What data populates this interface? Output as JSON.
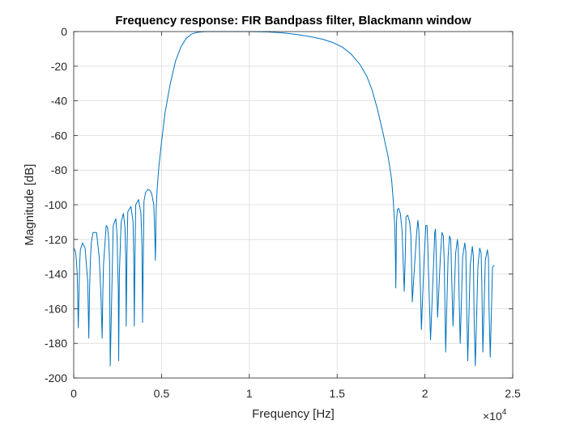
{
  "chart_data": {
    "type": "line",
    "title": "Frequency response: FIR Bandpass filter, Blackmann window",
    "xlabel": "Frequency [Hz]",
    "ylabel": "Magnitude [dB]",
    "xlim": [
      0,
      25000
    ],
    "ylim": [
      -200,
      0
    ],
    "x_ticks": [
      0,
      5000,
      10000,
      15000,
      20000,
      25000
    ],
    "x_tick_labels": [
      "0",
      "0.5",
      "1",
      "1.5",
      "2",
      "2.5"
    ],
    "x_exponent_label": "×10",
    "x_exponent_power": "4",
    "y_ticks": [
      0,
      -20,
      -40,
      -60,
      -80,
      -100,
      -120,
      -140,
      -160,
      -180,
      -200
    ],
    "y_tick_labels": [
      "0",
      "-20",
      "-40",
      "-60",
      "-80",
      "-100",
      "-120",
      "-140",
      "-160",
      "-180",
      "-200"
    ],
    "grid": true,
    "line_color": "#0072bd",
    "series": [
      {
        "x": [
          0,
          100,
          150,
          200,
          260,
          300,
          340,
          380,
          500,
          650,
          800,
          860,
          900,
          950,
          1000,
          1100,
          1300,
          1450,
          1550,
          1620,
          1660,
          1700,
          1850,
          1930,
          1990,
          2040,
          2080,
          2250,
          2400,
          2470,
          2500,
          2540,
          2560,
          2600,
          2700,
          2830,
          2920,
          2960,
          2990,
          3030,
          3080,
          3260,
          3380,
          3420,
          3450,
          3490,
          3530,
          3690,
          3830,
          3890,
          3920,
          3970,
          4000,
          4090,
          4230,
          4370,
          4450,
          4560,
          4620,
          4650,
          4670,
          4680,
          4700,
          4750,
          4850,
          5000,
          5200,
          5500,
          5800,
          6100,
          6400,
          6700,
          7000,
          7300,
          7600,
          8000,
          9000,
          10000,
          11000,
          12000,
          12800,
          13500,
          14200,
          14800,
          15300,
          15800,
          16300,
          16700,
          17000,
          17300,
          17600,
          17900,
          18100,
          18200,
          18280,
          18320,
          18340,
          18360,
          18370,
          18380,
          18430,
          18500,
          18600,
          18700,
          18820,
          18880,
          18920,
          19020,
          19130,
          19200,
          19240,
          19280,
          19380,
          19530,
          19600,
          19650,
          19700,
          19800,
          19950,
          20050,
          20120,
          20160,
          20220,
          20320,
          20470,
          20560,
          20600,
          20640,
          20720,
          20880,
          20970,
          21050,
          21100,
          21180,
          21320,
          21400,
          21470,
          21520,
          21600,
          21750,
          21850,
          21900,
          21950,
          22010,
          22150,
          22270,
          22330,
          22380,
          22440,
          22580,
          22700,
          22760,
          22800,
          22870,
          23020,
          23120,
          23200,
          23240,
          23300,
          23440,
          23560,
          23620,
          23650,
          23720,
          23850,
          23950
        ],
        "y": [
          -125,
          -127,
          -132,
          -140,
          -171,
          -152,
          -134,
          -126,
          -122,
          -125,
          -145,
          -177,
          -150,
          -132,
          -122,
          -116,
          -116,
          -130,
          -152,
          -177,
          -150,
          -134,
          -112,
          -113,
          -120,
          -132,
          -193,
          -112,
          -108,
          -118,
          -133,
          -150,
          -190,
          -140,
          -110,
          -105,
          -113,
          -130,
          -170,
          -130,
          -104,
          -101,
          -110,
          -131,
          -170,
          -130,
          -100,
          -97,
          -105,
          -125,
          -168,
          -125,
          -98,
          -93,
          -91,
          -92,
          -94,
          -100,
          -118,
          -132,
          -122,
          -111,
          -102,
          -91,
          -78,
          -64,
          -47,
          -30,
          -17,
          -9,
          -4,
          -1.5,
          -0.5,
          -0.1,
          0,
          0,
          0,
          0,
          -0.2,
          -0.8,
          -1.8,
          -3,
          -4.5,
          -6.5,
          -9,
          -13,
          -19,
          -26,
          -34,
          -45,
          -58,
          -72,
          -85,
          -98,
          -112,
          -130,
          -148,
          -134,
          -120,
          -110,
          -103,
          -102,
          -105,
          -115,
          -150,
          -130,
          -107,
          -106,
          -110,
          -118,
          -135,
          -156,
          -140,
          -116,
          -109,
          -114,
          -130,
          -172,
          -132,
          -112,
          -112,
          -122,
          -145,
          -178,
          -140,
          -116,
          -114,
          -127,
          -165,
          -130,
          -116,
          -118,
          -133,
          -185,
          -130,
          -118,
          -120,
          -140,
          -170,
          -128,
          -120,
          -125,
          -155,
          -180,
          -130,
          -122,
          -127,
          -160,
          -190,
          -135,
          -124,
          -130,
          -165,
          -193,
          -135,
          -125,
          -128,
          -145,
          -185,
          -132,
          -126,
          -131,
          -160,
          -188,
          -136,
          -135
        ]
      }
    ]
  }
}
